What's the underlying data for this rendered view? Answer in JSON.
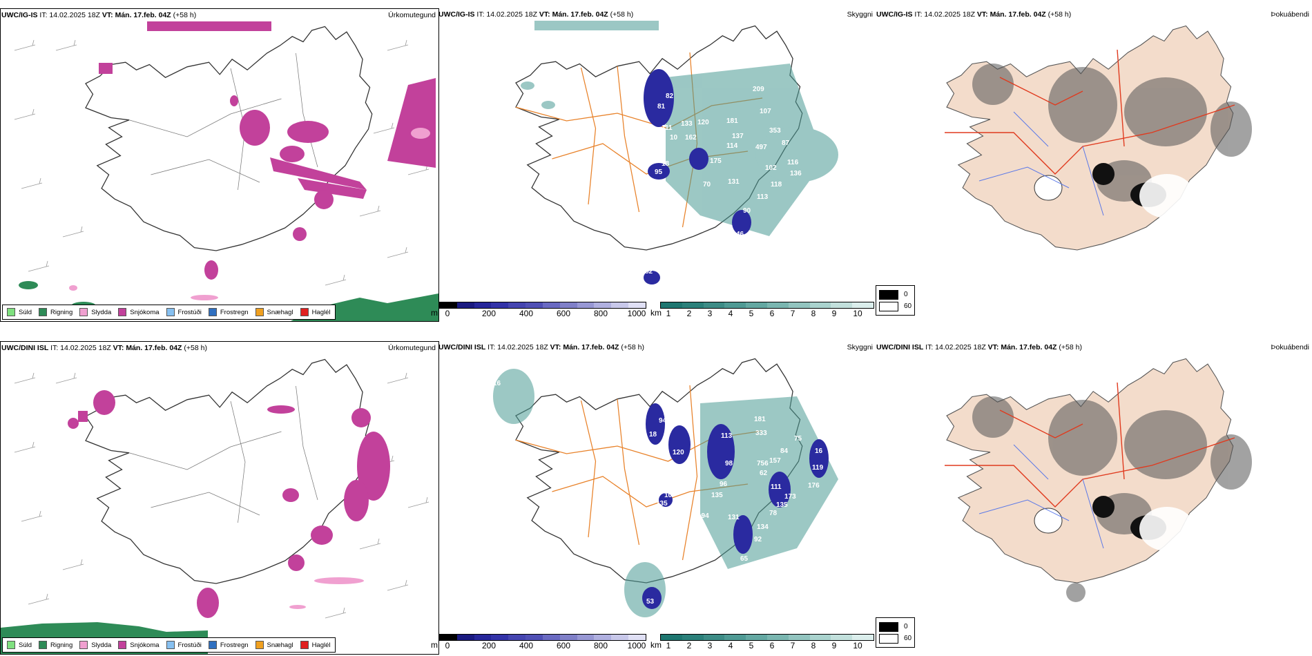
{
  "rows": [
    {
      "model_label": "UWC/IG-IS",
      "init_label": "IT: 14.02.2025 18Z",
      "valid_label": "VT: Mán. 17.feb. 04Z",
      "lead_label": "(+58 h)",
      "precip_title": "Úrkomutegund",
      "cloud_title": "Skyggni",
      "fog_title": "Þokuábendi",
      "cloud_height_labels": [
        "81",
        "82",
        "111",
        "133",
        "162",
        "10",
        "120",
        "95",
        "18",
        "209",
        "107",
        "181",
        "137",
        "114",
        "353",
        "497",
        "87",
        "102",
        "175",
        "131",
        "118",
        "113",
        "90",
        "46",
        "70",
        "116",
        "136",
        "996",
        "82"
      ]
    },
    {
      "model_label": "UWC/DINI ISL",
      "init_label": "IT: 14.02.2025 18Z",
      "valid_label": "VT: Mán. 17.feb. 04Z",
      "lead_label": "(+58 h)",
      "precip_title": "Úrkomutegund",
      "cloud_title": "Skyggni",
      "fog_title": "Þokuábendi",
      "cloud_height_labels": [
        "16",
        "94",
        "18",
        "120",
        "113",
        "98",
        "96",
        "135",
        "10",
        "135",
        "194",
        "131",
        "134",
        "78",
        "92",
        "65",
        "53",
        "181",
        "333",
        "75",
        "84",
        "756",
        "157",
        "62",
        "119",
        "16",
        "176",
        "173",
        "111",
        "135"
      ]
    }
  ],
  "precip_legend": [
    {
      "label": "Súld",
      "color": "#7fe07f"
    },
    {
      "label": "Rigning",
      "color": "#2e8b57"
    },
    {
      "label": "Slydda",
      "color": "#f0a0d0"
    },
    {
      "label": "Snjókoma",
      "color": "#c2419b"
    },
    {
      "label": "Frostúði",
      "color": "#87c0f0"
    },
    {
      "label": "Frostregn",
      "color": "#3070c0"
    },
    {
      "label": "Snæhagl",
      "color": "#f0a020"
    },
    {
      "label": "Haglél",
      "color": "#e02020"
    }
  ],
  "height_scale": {
    "unit": "m",
    "tick_labels": [
      "0",
      "200",
      "400",
      "600",
      "800",
      "1000"
    ],
    "colors": [
      "#000000",
      "#1a1a80",
      "#26269a",
      "#3333a8",
      "#4545b0",
      "#5050b5",
      "#6a6ac2",
      "#8080c8",
      "#9898d4",
      "#b0b0e0",
      "#c8c8ea",
      "#e0e0f5"
    ]
  },
  "visibility_scale": {
    "unit": "km",
    "tick_labels": [
      "1",
      "2",
      "3",
      "4",
      "5",
      "6",
      "7",
      "8",
      "9",
      "10"
    ],
    "colors": [
      "#1e7670",
      "#2b807a",
      "#3d8c86",
      "#4f9a94",
      "#64a8a2",
      "#7ab6b0",
      "#92c4bf",
      "#aad3ce",
      "#c2e0dc",
      "#dbeeec"
    ]
  },
  "fog_scale": {
    "labels": [
      "0",
      "60"
    ],
    "colors": [
      "#000000",
      "#ffffff"
    ]
  },
  "colors": {
    "snow": "#c2419b",
    "rain": "#2e8b57",
    "sleet": "#f0a0d0",
    "road": "#e8822a",
    "land_fog": "#f3dccb",
    "fog_road": "#e03a1e",
    "river": "#5a78e8",
    "cloud_blue": "#2a2aa0",
    "vis_teal": "#4a9a94"
  }
}
